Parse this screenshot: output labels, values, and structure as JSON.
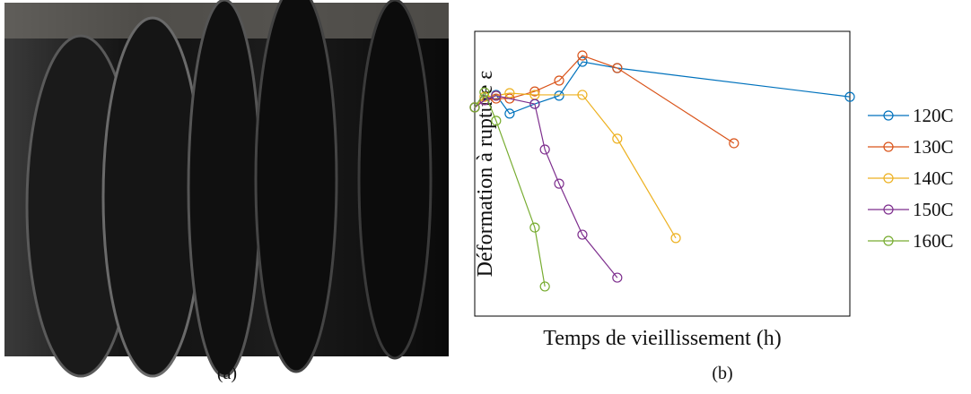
{
  "figure": {
    "captions": [
      "(a)",
      "(b)"
    ]
  },
  "chart_data": {
    "type": "line",
    "xlabel": "Temps de vieillissement (h)",
    "ylabel": "Déformation à rupture ε",
    "xlim": [
      0,
      100
    ],
    "ylim": [
      0,
      100
    ],
    "legend": "right",
    "grid": false,
    "marker": "circle",
    "series": [
      {
        "name": "120C",
        "color": "#0072bd",
        "x": [
          0,
          2.6,
          5.7,
          9.3,
          16.0,
          22.5,
          28.7,
          38.0,
          100
        ],
        "values": [
          73.3,
          75.8,
          77.7,
          71.1,
          74.5,
          77.4,
          89.3,
          87.1,
          77.0
        ]
      },
      {
        "name": "130C",
        "color": "#d95319",
        "x": [
          0,
          2.6,
          5.7,
          9.3,
          16.0,
          22.5,
          28.7,
          38.0,
          69.1
        ],
        "values": [
          73.3,
          75.8,
          76.4,
          76.4,
          78.9,
          82.7,
          91.5,
          87.1,
          60.7
        ]
      },
      {
        "name": "140C",
        "color": "#edb120",
        "x": [
          0,
          2.6,
          5.7,
          9.3,
          16.0,
          28.7,
          38.0,
          53.6
        ],
        "values": [
          73.3,
          77.0,
          77.4,
          78.3,
          77.7,
          77.7,
          62.3,
          27.4
        ]
      },
      {
        "name": "150C",
        "color": "#7e2f8e",
        "x": [
          0,
          2.6,
          5.7,
          16.0,
          18.7,
          22.5,
          28.7,
          38.0
        ],
        "values": [
          73.3,
          75.8,
          77.4,
          74.5,
          58.5,
          46.5,
          28.6,
          13.5
        ]
      },
      {
        "name": "160C",
        "color": "#77ac30",
        "x": [
          0,
          2.6,
          5.7,
          16.0,
          18.7
        ],
        "values": [
          73.3,
          78.6,
          68.6,
          31.1,
          10.4
        ]
      }
    ]
  }
}
